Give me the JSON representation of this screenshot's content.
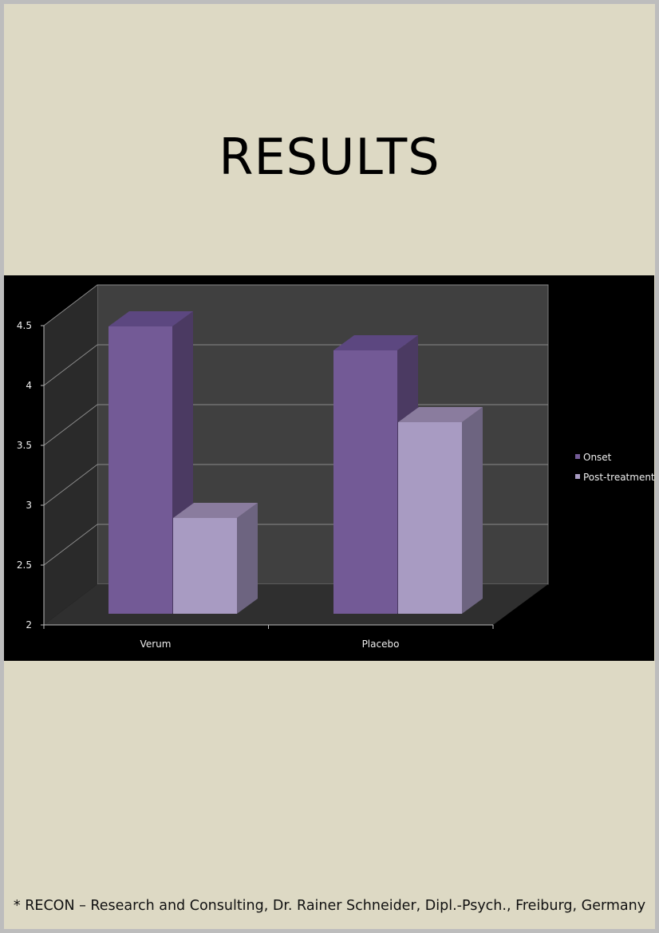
{
  "title": "RESULTS",
  "footer": "* RECON – Research and Consulting, Dr. Rainer Schneider, Dipl.-Psych., Freiburg, Germany",
  "chart_data": {
    "type": "bar",
    "style": "3d-clustered",
    "categories": [
      "Verum",
      "Placebo"
    ],
    "series": [
      {
        "name": "Onset",
        "values": [
          4.4,
          4.2
        ],
        "color": "#735a96"
      },
      {
        "name": "Post-treatment",
        "values": [
          2.8,
          3.6
        ],
        "color": "#a89bc2"
      }
    ],
    "ylim": [
      2,
      4.5
    ],
    "yticks": [
      "2",
      "2.5",
      "3",
      "3.5",
      "4",
      "4.5"
    ],
    "grid": true,
    "legend": "right",
    "background": "#000000"
  }
}
